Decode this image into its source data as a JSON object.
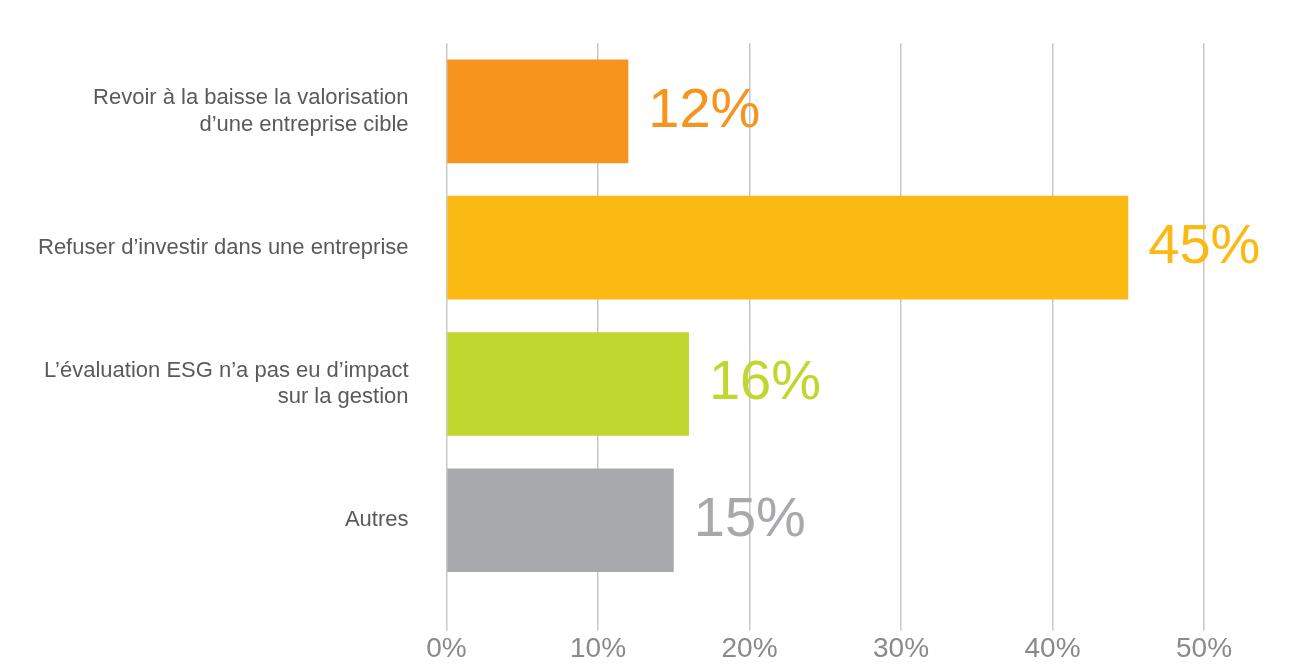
{
  "chart_data": {
    "type": "bar",
    "orientation": "horizontal",
    "categories": [
      "Revoir à la baisse la valorisation\nd’une entreprise cible",
      "Refuser d’investir dans une entreprise",
      "L’évaluation ESG n’a pas eu d’impact\nsur la gestion",
      "Autres"
    ],
    "values": [
      12,
      45,
      16,
      15
    ],
    "colors": [
      "#f7941d",
      "#fbb913",
      "#c0d72f",
      "#a7a9ac"
    ],
    "value_labels": [
      "12%",
      "45%",
      "16%",
      "15%"
    ],
    "xlim": [
      0,
      50
    ],
    "xticks": [
      {
        "value": 0,
        "label": "0%"
      },
      {
        "value": 10,
        "label": "10%"
      },
      {
        "value": 20,
        "label": "20%"
      },
      {
        "value": 30,
        "label": "30%"
      },
      {
        "value": 40,
        "label": "40%"
      },
      {
        "value": 50,
        "label": "50%"
      }
    ],
    "grid": "x",
    "legend": false
  }
}
